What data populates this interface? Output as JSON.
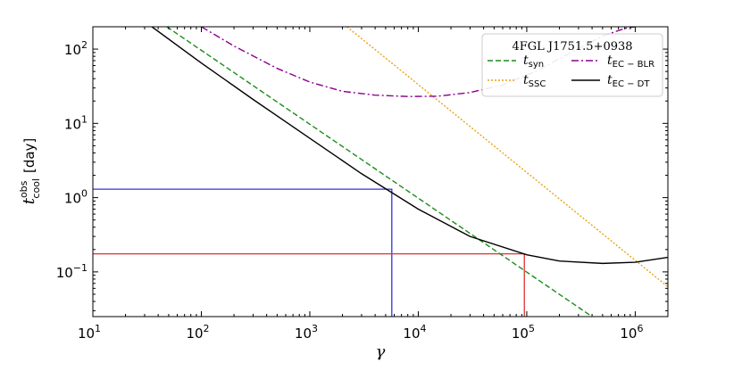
{
  "chart_data": {
    "type": "line",
    "title": "",
    "xlabel": "γ",
    "ylabel": {
      "base": "t",
      "sup": "obs",
      "sub": "cool",
      "unit": "[day]"
    },
    "xscale": "log",
    "yscale": "log",
    "xlim": [
      10,
      2000000
    ],
    "ylim": [
      0.025,
      200
    ],
    "grid": false,
    "legend": {
      "title": "4FGL J1751.5+0938",
      "placement": "top-right",
      "entries": [
        {
          "base": "t",
          "sub": "syn",
          "color": "#1a8c1a",
          "dash": "6,3"
        },
        {
          "base": "t",
          "sub": "EC − BLR",
          "color": "#8b008b",
          "dash": "8,3,2,3"
        },
        {
          "base": "t",
          "sub": "SSC",
          "color": "#e8a317",
          "dash": "2,2"
        },
        {
          "base": "t",
          "sub": "EC − DT",
          "color": "#000000",
          "dash": ""
        }
      ]
    },
    "x_ticks": [
      {
        "value": 10,
        "base": "10",
        "exp": "1"
      },
      {
        "value": 100,
        "base": "10",
        "exp": "2"
      },
      {
        "value": 1000,
        "base": "10",
        "exp": "3"
      },
      {
        "value": 10000,
        "base": "10",
        "exp": "4"
      },
      {
        "value": 100000,
        "base": "10",
        "exp": "5"
      },
      {
        "value": 1000000,
        "base": "10",
        "exp": "6"
      }
    ],
    "y_ticks": [
      {
        "value": 0.1,
        "base": "10",
        "exp": "−1"
      },
      {
        "value": 1,
        "base": "10",
        "exp": "0"
      },
      {
        "value": 10,
        "base": "10",
        "exp": "1"
      },
      {
        "value": 100,
        "base": "10",
        "exp": "2"
      }
    ],
    "series": [
      {
        "key": "syn",
        "color": "#1a8c1a",
        "dash": "6,3",
        "x": [
          48,
          400000
        ],
        "y": [
          200,
          0.025
        ]
      },
      {
        "key": "ssc",
        "color": "#e8a317",
        "dash": "2,2",
        "x": [
          2200,
          2000000
        ],
        "y": [
          200,
          0.063
        ]
      },
      {
        "key": "ec_blr",
        "color": "#8b008b",
        "dash": "8,3,2,3",
        "x": [
          100,
          200,
          500,
          1000,
          2000,
          4000,
          8000,
          15000,
          30000,
          60000,
          120000,
          250000,
          500000,
          800000,
          1000000
        ],
        "y": [
          200,
          110,
          55,
          36,
          27,
          24,
          23,
          23.2,
          26,
          33,
          50,
          88,
          150,
          190,
          200
        ]
      },
      {
        "key": "ec_dt",
        "color": "#000000",
        "dash": "",
        "x": [
          35,
          100,
          300,
          1000,
          3000,
          10000,
          30000,
          100000,
          200000,
          500000,
          1000000,
          2000000
        ],
        "y": [
          200,
          65,
          21,
          6.3,
          2.1,
          0.7,
          0.3,
          0.17,
          0.14,
          0.13,
          0.135,
          0.157
        ]
      }
    ],
    "reference_lines": [
      {
        "color": "#3333dd",
        "x": 5700,
        "y": 1.3
      },
      {
        "color": "#dd3333",
        "x": 95000,
        "y": 0.175
      }
    ]
  }
}
